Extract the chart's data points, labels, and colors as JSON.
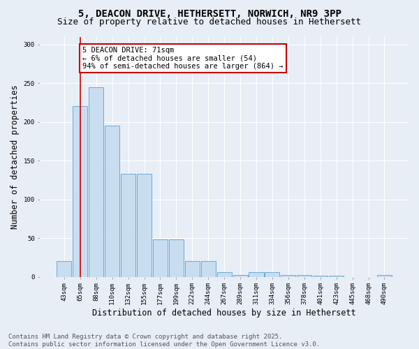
{
  "title_line1": "5, DEACON DRIVE, HETHERSETT, NORWICH, NR9 3PP",
  "title_line2": "Size of property relative to detached houses in Hethersett",
  "xlabel": "Distribution of detached houses by size in Hethersett",
  "ylabel": "Number of detached properties",
  "categories": [
    "43sqm",
    "65sqm",
    "88sqm",
    "110sqm",
    "132sqm",
    "155sqm",
    "177sqm",
    "199sqm",
    "222sqm",
    "244sqm",
    "267sqm",
    "289sqm",
    "311sqm",
    "334sqm",
    "356sqm",
    "378sqm",
    "401sqm",
    "423sqm",
    "445sqm",
    "468sqm",
    "490sqm"
  ],
  "values": [
    20,
    220,
    245,
    195,
    133,
    133,
    48,
    48,
    20,
    20,
    6,
    2,
    6,
    6,
    2,
    2,
    1,
    1,
    0,
    0,
    2
  ],
  "bar_color": "#c9ddf0",
  "bar_edge_color": "#6aabd2",
  "background_color": "#e8eef6",
  "grid_color": "#ffffff",
  "annotation_box_text": "5 DEACON DRIVE: 71sqm\n← 6% of detached houses are smaller (54)\n94% of semi-detached houses are larger (864) →",
  "annotation_box_color": "#ffffff",
  "annotation_box_edge_color": "#cc0000",
  "vline_x": 1,
  "vline_color": "#cc0000",
  "ylim": [
    0,
    310
  ],
  "yticks": [
    0,
    50,
    100,
    150,
    200,
    250,
    300
  ],
  "footer_line1": "Contains HM Land Registry data © Crown copyright and database right 2025.",
  "footer_line2": "Contains public sector information licensed under the Open Government Licence v3.0.",
  "title_fontsize": 10,
  "subtitle_fontsize": 9,
  "tick_fontsize": 6.5,
  "label_fontsize": 8.5,
  "annotation_fontsize": 7.5,
  "footer_fontsize": 6.5
}
